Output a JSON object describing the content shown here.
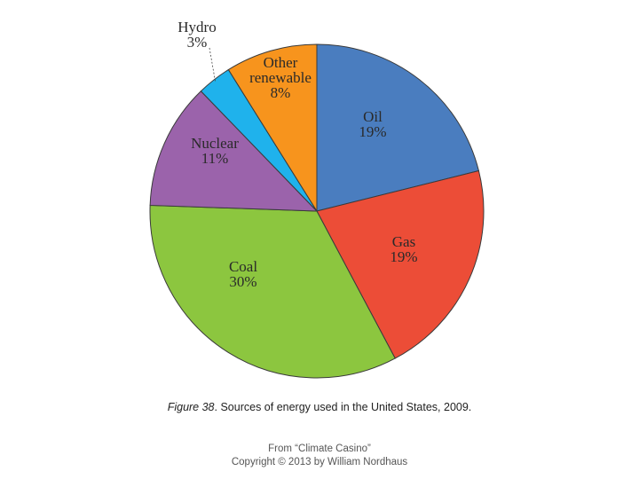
{
  "chart_data": {
    "type": "pie",
    "slices": [
      {
        "label": "Oil",
        "value": 19,
        "value_label": "19%",
        "color": "#4a7dbf"
      },
      {
        "label": "Gas",
        "value": 19,
        "value_label": "19%",
        "color": "#ec4d37"
      },
      {
        "label": "Coal",
        "value": 30,
        "value_label": "30%",
        "color": "#8cc63f"
      },
      {
        "label": "Nuclear",
        "value": 11,
        "value_label": "11%",
        "color": "#9b63ab"
      },
      {
        "label": "Hydro",
        "value": 3,
        "value_label": "3%",
        "color": "#1fb2ec"
      },
      {
        "label": "Other renewable",
        "value": 8,
        "value_label": "8%",
        "color": "#f7941d"
      }
    ]
  },
  "caption": {
    "figure_number": "Figure 38",
    "text": ". Sources of energy used in the United States, 2009."
  },
  "credit": {
    "line1": "From “Climate Casino”",
    "line2": "Copyright © 2013 by William Nordhaus"
  }
}
